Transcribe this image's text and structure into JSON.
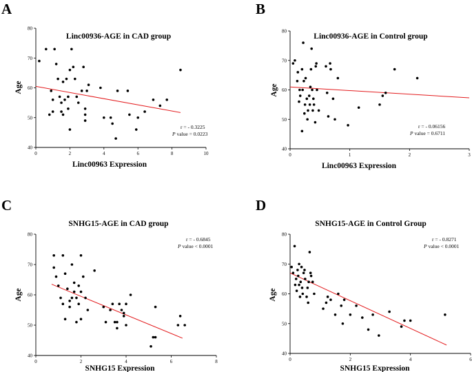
{
  "chart_data": [
    {
      "type": "scatter",
      "letter": "A",
      "title": "Linc00936-AGE in CAD group",
      "xlabel": "Linc00963 Expression",
      "ylabel": "Age",
      "xlim": [
        0,
        10
      ],
      "ylim": [
        40,
        80
      ],
      "xticks": [
        0,
        2,
        4,
        6,
        8,
        10
      ],
      "yticks": [
        40,
        50,
        60,
        70,
        80
      ],
      "stats": {
        "r": "r = - 0.3225",
        "p_label": "P",
        "p_rest": " value = 0.0223"
      },
      "fit_line": {
        "x": [
          0,
          8.5
        ],
        "y": [
          60.5,
          51.7
        ]
      },
      "points": [
        [
          0.2,
          69
        ],
        [
          0.6,
          73
        ],
        [
          0.8,
          51
        ],
        [
          0.9,
          59
        ],
        [
          1.0,
          52
        ],
        [
          1.0,
          56
        ],
        [
          1.1,
          73
        ],
        [
          1.2,
          68
        ],
        [
          1.3,
          63
        ],
        [
          1.4,
          57
        ],
        [
          1.5,
          55
        ],
        [
          1.5,
          52
        ],
        [
          1.6,
          51
        ],
        [
          1.6,
          62
        ],
        [
          1.7,
          56
        ],
        [
          1.8,
          63
        ],
        [
          1.9,
          53
        ],
        [
          1.9,
          57
        ],
        [
          2.0,
          46
        ],
        [
          2.0,
          66
        ],
        [
          2.1,
          73
        ],
        [
          2.2,
          67
        ],
        [
          2.3,
          63
        ],
        [
          2.4,
          57
        ],
        [
          2.5,
          55
        ],
        [
          2.7,
          59
        ],
        [
          2.8,
          67
        ],
        [
          2.9,
          53
        ],
        [
          2.9,
          51
        ],
        [
          2.9,
          49
        ],
        [
          3.0,
          59
        ],
        [
          3.1,
          61
        ],
        [
          3.8,
          60
        ],
        [
          4.0,
          50
        ],
        [
          4.4,
          50
        ],
        [
          4.5,
          48
        ],
        [
          4.7,
          43
        ],
        [
          4.8,
          59
        ],
        [
          5.4,
          59
        ],
        [
          5.5,
          51
        ],
        [
          5.9,
          46
        ],
        [
          6.0,
          50
        ],
        [
          6.4,
          52
        ],
        [
          6.9,
          56
        ],
        [
          7.3,
          54
        ],
        [
          7.7,
          56
        ],
        [
          8.5,
          66
        ]
      ]
    },
    {
      "type": "scatter",
      "letter": "B",
      "title": "Linc00936-AGE in Control group",
      "xlabel": "Linc00963 Expression",
      "ylabel": "Age",
      "xlim": [
        0,
        3
      ],
      "ylim": [
        40,
        80
      ],
      "xticks": [
        0,
        1,
        2,
        3
      ],
      "yticks": [
        40,
        50,
        60,
        70,
        80
      ],
      "stats": {
        "r": "r = - 0.06156",
        "p_label": "P",
        "p_rest": " value = 0.6711"
      },
      "fit_line": {
        "x": [
          0,
          3
        ],
        "y": [
          61.0,
          57.3
        ]
      },
      "points": [
        [
          0.05,
          69
        ],
        [
          0.08,
          70
        ],
        [
          0.12,
          63
        ],
        [
          0.13,
          66
        ],
        [
          0.15,
          56
        ],
        [
          0.16,
          60
        ],
        [
          0.17,
          58
        ],
        [
          0.2,
          46
        ],
        [
          0.2,
          67
        ],
        [
          0.21,
          60
        ],
        [
          0.22,
          76
        ],
        [
          0.23,
          63
        ],
        [
          0.24,
          52
        ],
        [
          0.25,
          55
        ],
        [
          0.26,
          64
        ],
        [
          0.28,
          57
        ],
        [
          0.29,
          50
        ],
        [
          0.3,
          53
        ],
        [
          0.32,
          58
        ],
        [
          0.33,
          55
        ],
        [
          0.34,
          61
        ],
        [
          0.35,
          67
        ],
        [
          0.36,
          74
        ],
        [
          0.37,
          60
        ],
        [
          0.38,
          53
        ],
        [
          0.39,
          57
        ],
        [
          0.4,
          55
        ],
        [
          0.42,
          49
        ],
        [
          0.43,
          68
        ],
        [
          0.44,
          69
        ],
        [
          0.45,
          60
        ],
        [
          0.48,
          53
        ],
        [
          0.6,
          68
        ],
        [
          0.62,
          59
        ],
        [
          0.64,
          51
        ],
        [
          0.67,
          69
        ],
        [
          0.68,
          67
        ],
        [
          0.72,
          57
        ],
        [
          0.75,
          50
        ],
        [
          0.8,
          64
        ],
        [
          0.97,
          48
        ],
        [
          1.15,
          54
        ],
        [
          1.55,
          58
        ],
        [
          1.6,
          59
        ],
        [
          1.5,
          55
        ],
        [
          1.75,
          67
        ],
        [
          2.13,
          64
        ]
      ]
    },
    {
      "type": "scatter",
      "letter": "C",
      "title": "SNHG15-AGE in CAD group",
      "xlabel": "SNHG15 Expression",
      "ylabel": "Age",
      "xlim": [
        0,
        8
      ],
      "ylim": [
        40,
        80
      ],
      "xticks": [
        0,
        2,
        4,
        6,
        8
      ],
      "yticks": [
        40,
        50,
        60,
        70,
        80
      ],
      "stats": {
        "r": "r = - 0.6845",
        "p_label": "P",
        "p_rest": " value < 0.0001"
      },
      "fit_line": {
        "x": [
          0.7,
          6.5
        ],
        "y": [
          63.5,
          45.7
        ]
      },
      "points": [
        [
          0.8,
          73
        ],
        [
          0.8,
          69
        ],
        [
          0.9,
          66
        ],
        [
          1.0,
          63
        ],
        [
          1.1,
          59
        ],
        [
          1.2,
          73
        ],
        [
          1.2,
          57
        ],
        [
          1.3,
          67
        ],
        [
          1.3,
          52
        ],
        [
          1.4,
          62
        ],
        [
          1.5,
          58
        ],
        [
          1.5,
          56
        ],
        [
          1.6,
          70
        ],
        [
          1.6,
          59
        ],
        [
          1.7,
          64
        ],
        [
          1.7,
          61
        ],
        [
          1.8,
          51
        ],
        [
          1.8,
          59
        ],
        [
          1.9,
          63
        ],
        [
          1.9,
          57
        ],
        [
          2.0,
          73
        ],
        [
          2.0,
          61
        ],
        [
          2.0,
          52
        ],
        [
          2.1,
          66
        ],
        [
          2.2,
          59
        ],
        [
          2.3,
          55
        ],
        [
          2.6,
          68
        ],
        [
          3.0,
          56
        ],
        [
          3.1,
          51
        ],
        [
          3.3,
          55
        ],
        [
          3.4,
          57
        ],
        [
          3.5,
          51
        ],
        [
          3.6,
          51
        ],
        [
          3.6,
          49
        ],
        [
          3.7,
          57
        ],
        [
          3.8,
          55
        ],
        [
          3.9,
          54
        ],
        [
          3.9,
          53
        ],
        [
          4.0,
          50
        ],
        [
          4.0,
          57
        ],
        [
          4.2,
          60
        ],
        [
          5.1,
          43
        ],
        [
          5.2,
          46
        ],
        [
          5.3,
          46
        ],
        [
          5.3,
          56
        ],
        [
          6.3,
          50
        ],
        [
          6.4,
          53
        ],
        [
          6.6,
          50
        ]
      ]
    },
    {
      "type": "scatter",
      "letter": "D",
      "title": "SNHG15-AGE in Control Group",
      "xlabel": "SNHG15 Expression",
      "ylabel": "Age",
      "xlim": [
        0,
        6
      ],
      "ylim": [
        40,
        80
      ],
      "xticks": [
        0,
        2,
        4,
        6
      ],
      "yticks": [
        40,
        50,
        60,
        70,
        80
      ],
      "stats": {
        "r": "r = - 0.8271",
        "p_label": "P",
        "p_rest": " value < 0.0001"
      },
      "fit_line": {
        "x": [
          0,
          5.2
        ],
        "y": [
          67.0,
          42.8
        ]
      },
      "points": [
        [
          0.05,
          69
        ],
        [
          0.1,
          67
        ],
        [
          0.15,
          76
        ],
        [
          0.17,
          63
        ],
        [
          0.2,
          65
        ],
        [
          0.22,
          61
        ],
        [
          0.25,
          68
        ],
        [
          0.27,
          66
        ],
        [
          0.3,
          70
        ],
        [
          0.3,
          63
        ],
        [
          0.33,
          59
        ],
        [
          0.35,
          64
        ],
        [
          0.38,
          69
        ],
        [
          0.4,
          62
        ],
        [
          0.42,
          60
        ],
        [
          0.45,
          67
        ],
        [
          0.48,
          68
        ],
        [
          0.5,
          65
        ],
        [
          0.55,
          59
        ],
        [
          0.58,
          62
        ],
        [
          0.6,
          57
        ],
        [
          0.62,
          64
        ],
        [
          0.65,
          74
        ],
        [
          0.68,
          67
        ],
        [
          0.7,
          66
        ],
        [
          0.75,
          64
        ],
        [
          0.8,
          60
        ],
        [
          1.1,
          55
        ],
        [
          1.2,
          57
        ],
        [
          1.25,
          59
        ],
        [
          1.35,
          58
        ],
        [
          1.5,
          53
        ],
        [
          1.6,
          60
        ],
        [
          1.7,
          56
        ],
        [
          1.75,
          50
        ],
        [
          1.8,
          58
        ],
        [
          2.0,
          53
        ],
        [
          2.2,
          56
        ],
        [
          2.4,
          52
        ],
        [
          2.6,
          48
        ],
        [
          2.75,
          53
        ],
        [
          2.95,
          46
        ],
        [
          3.3,
          54
        ],
        [
          3.7,
          49
        ],
        [
          3.8,
          51
        ],
        [
          4.0,
          51
        ],
        [
          5.15,
          53
        ]
      ]
    }
  ]
}
